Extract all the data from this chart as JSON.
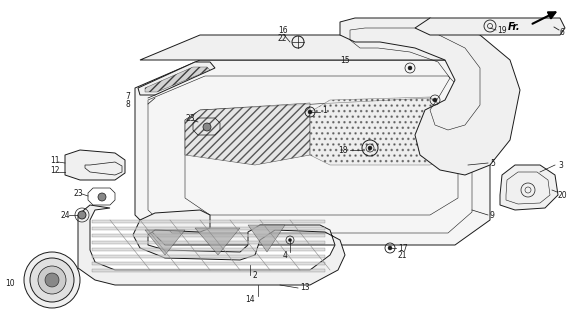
{
  "background_color": "#ffffff",
  "line_color": "#1a1a1a",
  "fig_width": 5.75,
  "fig_height": 3.2,
  "dpi": 100,
  "label_fontsize": 5.5
}
